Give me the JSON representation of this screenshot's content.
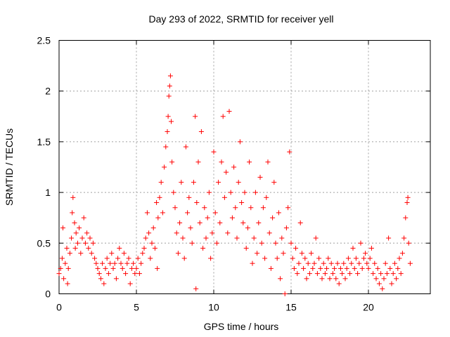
{
  "chart_data": {
    "type": "scatter",
    "title": "Day 293 of 2022, SRMTID for receiver yell",
    "xlabel": "GPS time / hours",
    "ylabel": "SRMTID / TECUs",
    "xlim": [
      0,
      24
    ],
    "ylim": [
      0,
      2.5
    ],
    "xticks": [
      "0",
      "5",
      "10",
      "15",
      "20"
    ],
    "yticks": [
      "0",
      "0.5",
      "1",
      "1.5",
      "2",
      "2.5"
    ],
    "grid": true,
    "marker": "plus",
    "color": "#ff0000",
    "series": [
      {
        "name": "SRMTID",
        "points": [
          [
            0.0,
            0.2
          ],
          [
            0.1,
            0.25
          ],
          [
            0.2,
            0.35
          ],
          [
            0.25,
            0.65
          ],
          [
            0.3,
            0.15
          ],
          [
            0.4,
            0.3
          ],
          [
            0.5,
            0.45
          ],
          [
            0.55,
            0.1
          ],
          [
            0.6,
            0.25
          ],
          [
            0.7,
            0.4
          ],
          [
            0.8,
            0.55
          ],
          [
            0.85,
            0.8
          ],
          [
            0.9,
            0.95
          ],
          [
            1.0,
            0.7
          ],
          [
            1.05,
            0.45
          ],
          [
            1.1,
            0.6
          ],
          [
            1.2,
            0.5
          ],
          [
            1.3,
            0.65
          ],
          [
            1.4,
            0.4
          ],
          [
            1.5,
            0.55
          ],
          [
            1.6,
            0.75
          ],
          [
            1.7,
            0.5
          ],
          [
            1.8,
            0.6
          ],
          [
            1.9,
            0.45
          ],
          [
            2.0,
            0.55
          ],
          [
            2.1,
            0.4
          ],
          [
            2.2,
            0.5
          ],
          [
            2.3,
            0.35
          ],
          [
            2.4,
            0.3
          ],
          [
            2.5,
            0.25
          ],
          [
            2.6,
            0.2
          ],
          [
            2.7,
            0.15
          ],
          [
            2.8,
            0.3
          ],
          [
            2.9,
            0.1
          ],
          [
            3.0,
            0.25
          ],
          [
            3.1,
            0.35
          ],
          [
            3.2,
            0.2
          ],
          [
            3.3,
            0.3
          ],
          [
            3.4,
            0.4
          ],
          [
            3.5,
            0.25
          ],
          [
            3.6,
            0.3
          ],
          [
            3.7,
            0.15
          ],
          [
            3.8,
            0.35
          ],
          [
            3.9,
            0.45
          ],
          [
            4.0,
            0.3
          ],
          [
            4.1,
            0.25
          ],
          [
            4.2,
            0.4
          ],
          [
            4.3,
            0.2
          ],
          [
            4.4,
            0.3
          ],
          [
            4.5,
            0.35
          ],
          [
            4.6,
            0.1
          ],
          [
            4.7,
            0.25
          ],
          [
            4.8,
            0.3
          ],
          [
            4.9,
            0.2
          ],
          [
            5.0,
            0.25
          ],
          [
            5.1,
            0.35
          ],
          [
            5.2,
            0.2
          ],
          [
            5.3,
            0.3
          ],
          [
            5.4,
            0.4
          ],
          [
            5.5,
            0.45
          ],
          [
            5.6,
            0.55
          ],
          [
            5.7,
            0.8
          ],
          [
            5.8,
            0.6
          ],
          [
            5.9,
            0.35
          ],
          [
            6.0,
            0.5
          ],
          [
            6.1,
            0.65
          ],
          [
            6.2,
            0.45
          ],
          [
            6.3,
            0.9
          ],
          [
            6.35,
            0.25
          ],
          [
            6.4,
            0.75
          ],
          [
            6.5,
            0.95
          ],
          [
            6.6,
            1.1
          ],
          [
            6.7,
            0.8
          ],
          [
            6.8,
            1.25
          ],
          [
            6.9,
            1.45
          ],
          [
            7.0,
            1.6
          ],
          [
            7.05,
            1.75
          ],
          [
            7.1,
            1.95
          ],
          [
            7.15,
            2.05
          ],
          [
            7.2,
            2.15
          ],
          [
            7.25,
            1.7
          ],
          [
            7.3,
            1.3
          ],
          [
            7.4,
            1.0
          ],
          [
            7.5,
            0.85
          ],
          [
            7.6,
            0.6
          ],
          [
            7.7,
            0.4
          ],
          [
            7.8,
            0.7
          ],
          [
            7.9,
            1.1
          ],
          [
            8.0,
            0.55
          ],
          [
            8.1,
            0.35
          ],
          [
            8.2,
            1.45
          ],
          [
            8.3,
            0.8
          ],
          [
            8.4,
            0.95
          ],
          [
            8.5,
            0.65
          ],
          [
            8.6,
            0.5
          ],
          [
            8.7,
            1.1
          ],
          [
            8.8,
            1.75
          ],
          [
            8.85,
            0.05
          ],
          [
            8.9,
            0.9
          ],
          [
            9.0,
            1.3
          ],
          [
            9.1,
            0.7
          ],
          [
            9.2,
            1.6
          ],
          [
            9.3,
            0.45
          ],
          [
            9.4,
            0.85
          ],
          [
            9.5,
            0.55
          ],
          [
            9.6,
            0.75
          ],
          [
            9.7,
            1.0
          ],
          [
            9.8,
            0.35
          ],
          [
            9.9,
            0.6
          ],
          [
            10.0,
            1.4
          ],
          [
            10.1,
            0.8
          ],
          [
            10.2,
            0.5
          ],
          [
            10.3,
            1.1
          ],
          [
            10.4,
            0.7
          ],
          [
            10.5,
            1.3
          ],
          [
            10.6,
            1.75
          ],
          [
            10.7,
            0.95
          ],
          [
            10.8,
            1.2
          ],
          [
            10.9,
            0.6
          ],
          [
            11.0,
            1.8
          ],
          [
            11.1,
            1.0
          ],
          [
            11.2,
            0.75
          ],
          [
            11.3,
            1.25
          ],
          [
            11.4,
            0.85
          ],
          [
            11.5,
            0.55
          ],
          [
            11.6,
            1.1
          ],
          [
            11.7,
            1.5
          ],
          [
            11.8,
            0.9
          ],
          [
            11.9,
            0.7
          ],
          [
            12.0,
            1.0
          ],
          [
            12.1,
            0.45
          ],
          [
            12.2,
            0.65
          ],
          [
            12.3,
            1.3
          ],
          [
            12.4,
            0.85
          ],
          [
            12.5,
            0.3
          ],
          [
            12.6,
            0.55
          ],
          [
            12.7,
            1.0
          ],
          [
            12.8,
            0.4
          ],
          [
            12.9,
            0.7
          ],
          [
            13.0,
            1.15
          ],
          [
            13.1,
            0.5
          ],
          [
            13.2,
            0.85
          ],
          [
            13.3,
            0.35
          ],
          [
            13.4,
            0.95
          ],
          [
            13.5,
            1.3
          ],
          [
            13.6,
            0.6
          ],
          [
            13.7,
            0.25
          ],
          [
            13.8,
            0.75
          ],
          [
            13.9,
            1.1
          ],
          [
            14.0,
            0.5
          ],
          [
            14.1,
            0.35
          ],
          [
            14.2,
            0.8
          ],
          [
            14.3,
            0.15
          ],
          [
            14.4,
            0.55
          ],
          [
            14.5,
            0.4
          ],
          [
            14.6,
            0.0
          ],
          [
            14.7,
            0.65
          ],
          [
            14.8,
            0.85
          ],
          [
            14.9,
            1.4
          ],
          [
            15.0,
            0.5
          ],
          [
            15.1,
            0.35
          ],
          [
            15.2,
            0.25
          ],
          [
            15.3,
            0.45
          ],
          [
            15.4,
            0.2
          ],
          [
            15.5,
            0.3
          ],
          [
            15.6,
            0.7
          ],
          [
            15.7,
            0.4
          ],
          [
            15.8,
            0.25
          ],
          [
            15.9,
            0.35
          ],
          [
            16.0,
            0.15
          ],
          [
            16.1,
            0.3
          ],
          [
            16.2,
            0.2
          ],
          [
            16.3,
            0.4
          ],
          [
            16.4,
            0.25
          ],
          [
            16.5,
            0.3
          ],
          [
            16.6,
            0.55
          ],
          [
            16.7,
            0.2
          ],
          [
            16.8,
            0.35
          ],
          [
            16.9,
            0.25
          ],
          [
            17.0,
            0.15
          ],
          [
            17.1,
            0.3
          ],
          [
            17.2,
            0.2
          ],
          [
            17.3,
            0.25
          ],
          [
            17.4,
            0.35
          ],
          [
            17.5,
            0.15
          ],
          [
            17.6,
            0.3
          ],
          [
            17.7,
            0.2
          ],
          [
            17.8,
            0.25
          ],
          [
            17.9,
            0.15
          ],
          [
            18.0,
            0.3
          ],
          [
            18.1,
            0.1
          ],
          [
            18.2,
            0.25
          ],
          [
            18.3,
            0.2
          ],
          [
            18.4,
            0.3
          ],
          [
            18.5,
            0.15
          ],
          [
            18.6,
            0.25
          ],
          [
            18.7,
            0.35
          ],
          [
            18.8,
            0.2
          ],
          [
            18.9,
            0.3
          ],
          [
            19.0,
            0.45
          ],
          [
            19.1,
            0.25
          ],
          [
            19.2,
            0.35
          ],
          [
            19.3,
            0.2
          ],
          [
            19.4,
            0.3
          ],
          [
            19.5,
            0.5
          ],
          [
            19.6,
            0.25
          ],
          [
            19.7,
            0.35
          ],
          [
            19.8,
            0.4
          ],
          [
            19.9,
            0.3
          ],
          [
            20.0,
            0.25
          ],
          [
            20.1,
            0.35
          ],
          [
            20.2,
            0.45
          ],
          [
            20.3,
            0.2
          ],
          [
            20.4,
            0.3
          ],
          [
            20.5,
            0.15
          ],
          [
            20.6,
            0.25
          ],
          [
            20.7,
            0.1
          ],
          [
            20.8,
            0.2
          ],
          [
            20.9,
            0.05
          ],
          [
            21.0,
            0.15
          ],
          [
            21.1,
            0.3
          ],
          [
            21.2,
            0.2
          ],
          [
            21.3,
            0.55
          ],
          [
            21.4,
            0.25
          ],
          [
            21.5,
            0.1
          ],
          [
            21.6,
            0.2
          ],
          [
            21.7,
            0.3
          ],
          [
            21.8,
            0.15
          ],
          [
            21.9,
            0.25
          ],
          [
            22.0,
            0.35
          ],
          [
            22.1,
            0.2
          ],
          [
            22.2,
            0.4
          ],
          [
            22.3,
            0.55
          ],
          [
            22.4,
            0.75
          ],
          [
            22.5,
            0.9
          ],
          [
            22.55,
            0.95
          ],
          [
            22.6,
            0.5
          ],
          [
            22.7,
            0.3
          ]
        ]
      }
    ]
  }
}
